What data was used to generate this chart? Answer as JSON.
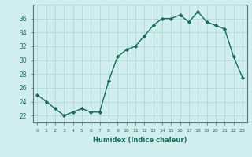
{
  "x": [
    0,
    1,
    2,
    3,
    4,
    5,
    6,
    7,
    8,
    9,
    10,
    11,
    12,
    13,
    14,
    15,
    16,
    17,
    18,
    19,
    20,
    21,
    22,
    23
  ],
  "y": [
    25.0,
    24.0,
    23.0,
    22.0,
    22.5,
    23.0,
    22.5,
    22.5,
    27.0,
    30.5,
    31.5,
    32.0,
    33.5,
    35.0,
    36.0,
    36.0,
    36.5,
    35.5,
    37.0,
    35.5,
    35.0,
    34.5,
    30.5,
    27.5
  ],
  "xlabel": "Humidex (Indice chaleur)",
  "xlim": [
    -0.5,
    23.5
  ],
  "ylim": [
    21,
    38
  ],
  "yticks": [
    22,
    24,
    26,
    28,
    30,
    32,
    34,
    36
  ],
  "xticks": [
    0,
    1,
    2,
    3,
    4,
    5,
    6,
    7,
    8,
    9,
    10,
    11,
    12,
    13,
    14,
    15,
    16,
    17,
    18,
    19,
    20,
    21,
    22,
    23
  ],
  "line_color": "#1a6b5a",
  "marker": "D",
  "marker_size": 2.2,
  "background_color": "#d0eeee",
  "grid_color": "#b0d8d8",
  "line_width": 1.0
}
